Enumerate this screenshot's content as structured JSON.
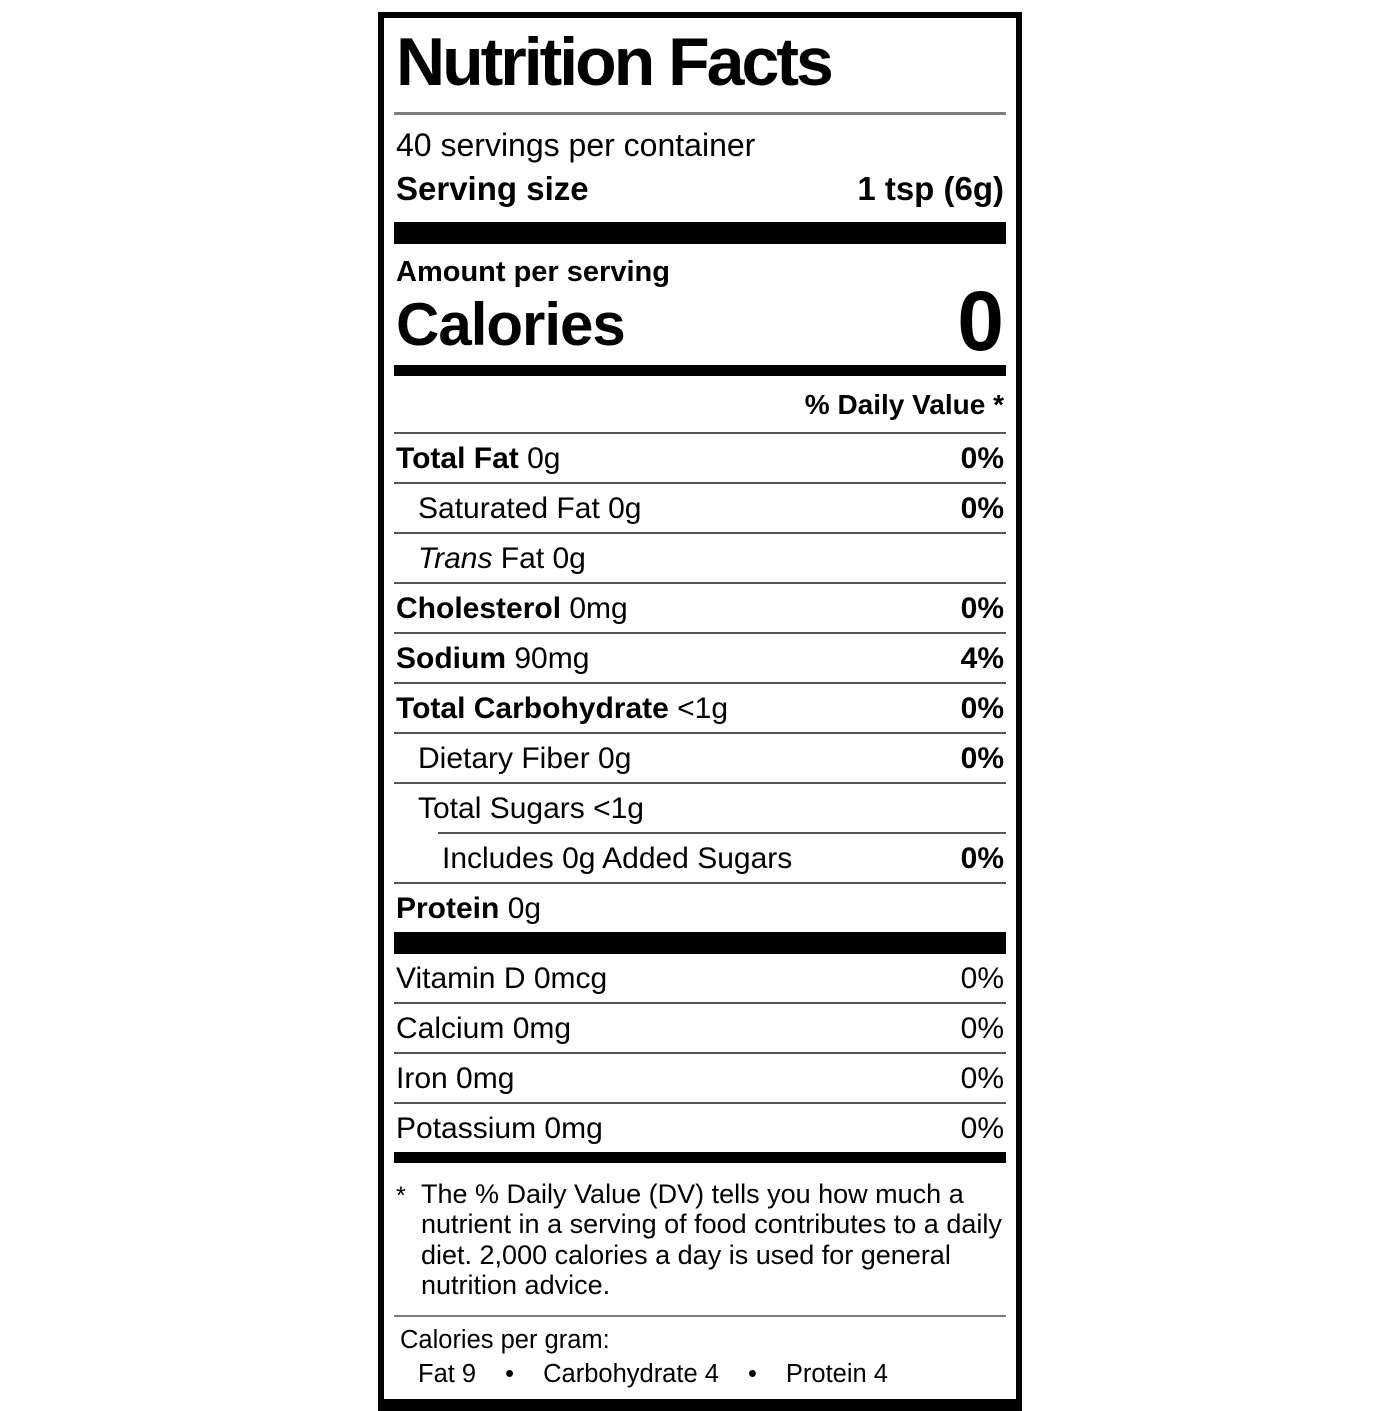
{
  "label": {
    "title": "Nutrition Facts",
    "servings_per_container": "40 servings per container",
    "serving_size": {
      "label": "Serving size",
      "value": "1 tsp (6g)"
    },
    "amount_per_serving": "Amount per serving",
    "calories": {
      "label": "Calories",
      "value": "0"
    },
    "daily_value_header": "% Daily Value *",
    "nutrient_rows": [
      {
        "bold_part": "Total Fat",
        "regular_part": " 0g",
        "dv": "0%",
        "dv_bold": true,
        "indent": 0,
        "rule_after": "full"
      },
      {
        "regular_part": "Saturated Fat 0g",
        "dv": "0%",
        "dv_bold": true,
        "indent": 1,
        "rule_after": "full"
      },
      {
        "italic_part": "Trans",
        "regular_part": " Fat 0g",
        "dv": "",
        "dv_bold": false,
        "indent": 1,
        "rule_after": "full"
      },
      {
        "bold_part": "Cholesterol",
        "regular_part": " 0mg",
        "dv": "0%",
        "dv_bold": true,
        "indent": 0,
        "rule_after": "full"
      },
      {
        "bold_part": "Sodium",
        "regular_part": " 90mg",
        "dv": "4%",
        "dv_bold": true,
        "indent": 0,
        "rule_after": "full"
      },
      {
        "bold_part": "Total Carbohydrate",
        "regular_part": " <1g",
        "dv": "0%",
        "dv_bold": true,
        "indent": 0,
        "rule_after": "full"
      },
      {
        "regular_part": "Dietary Fiber 0g",
        "dv": "0%",
        "dv_bold": true,
        "indent": 1,
        "rule_after": "full"
      },
      {
        "regular_part": "Total Sugars <1g",
        "dv": "",
        "dv_bold": false,
        "indent": 1,
        "rule_after": "indent"
      },
      {
        "regular_part": "Includes 0g Added Sugars",
        "dv": "0%",
        "dv_bold": true,
        "indent": 2,
        "rule_after": "full"
      },
      {
        "bold_part": "Protein",
        "regular_part": " 0g",
        "dv": "",
        "dv_bold": false,
        "indent": 0,
        "rule_after": "none"
      }
    ],
    "vitamin_rows": [
      {
        "regular_part": "Vitamin D 0mcg",
        "dv": "0%",
        "dv_bold": false,
        "indent": 0,
        "rule_after": "full"
      },
      {
        "regular_part": "Calcium 0mg",
        "dv": "0%",
        "dv_bold": false,
        "indent": 0,
        "rule_after": "full"
      },
      {
        "regular_part": "Iron 0mg",
        "dv": "0%",
        "dv_bold": false,
        "indent": 0,
        "rule_after": "full"
      },
      {
        "regular_part": "Potassium 0mg",
        "dv": "0%",
        "dv_bold": false,
        "indent": 0,
        "rule_after": "none"
      }
    ],
    "footnote": {
      "marker": "*",
      "text": "The % Daily Value (DV) tells you how much a nutrient in a serving of food contributes to a daily diet. 2,000 calories a day is used for general nutrition advice."
    },
    "calories_per_gram": {
      "label": "Calories per gram:",
      "bullet": "•",
      "items": [
        "Fat 9",
        "Carbohydrate 4",
        "Protein 4"
      ]
    }
  }
}
